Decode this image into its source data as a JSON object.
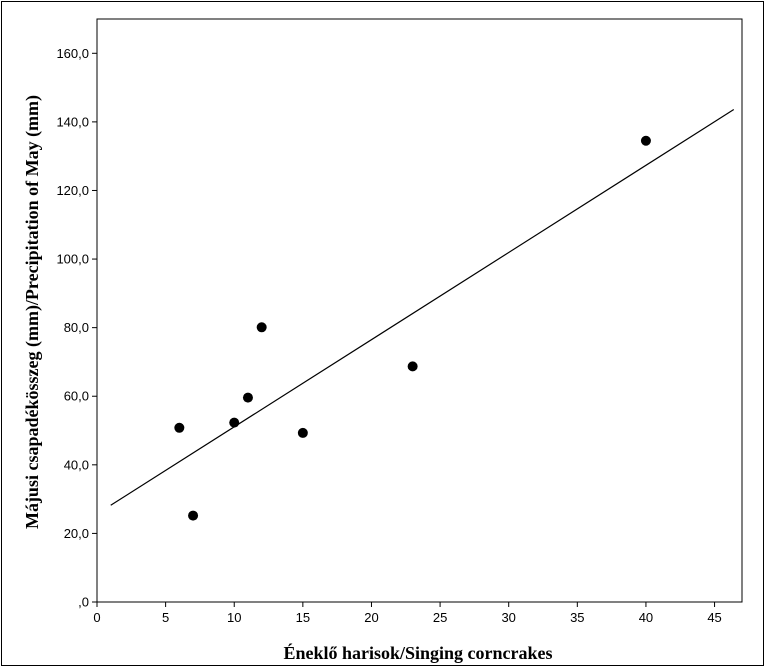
{
  "chart_data": {
    "type": "scatter",
    "title": "",
    "xlabel": "Éneklő harisok/Singing corncrakes",
    "ylabel": "Májusi csapadékösszeg (mm)/Precipitation of May (mm)",
    "xlim": [
      0,
      47
    ],
    "ylim": [
      0,
      170
    ],
    "x_ticks": [
      0,
      5,
      10,
      15,
      20,
      25,
      30,
      35,
      40,
      45
    ],
    "x_tick_labels": [
      "0",
      "5",
      "10",
      "15",
      "20",
      "25",
      "30",
      "35",
      "40",
      "45"
    ],
    "y_ticks": [
      0,
      20,
      40,
      60,
      80,
      100,
      120,
      140,
      160
    ],
    "y_tick_labels": [
      ",0",
      "20,0",
      "40,0",
      "60,0",
      "80,0",
      "100,0",
      "120,0",
      "140,0",
      "160,0"
    ],
    "grid": false,
    "series": [
      {
        "points": [
          {
            "x": 6,
            "y": 50.8
          },
          {
            "x": 7,
            "y": 25.2
          },
          {
            "x": 10,
            "y": 52.3
          },
          {
            "x": 11,
            "y": 59.6
          },
          {
            "x": 12,
            "y": 80.1
          },
          {
            "x": 15,
            "y": 49.3
          },
          {
            "x": 23,
            "y": 68.7
          },
          {
            "x": 40,
            "y": 134.5
          }
        ],
        "color": "#000000"
      }
    ],
    "fit_line": {
      "x": [
        1,
        46.4
      ],
      "y": [
        28.2,
        143.6
      ],
      "color": "#000000"
    }
  }
}
